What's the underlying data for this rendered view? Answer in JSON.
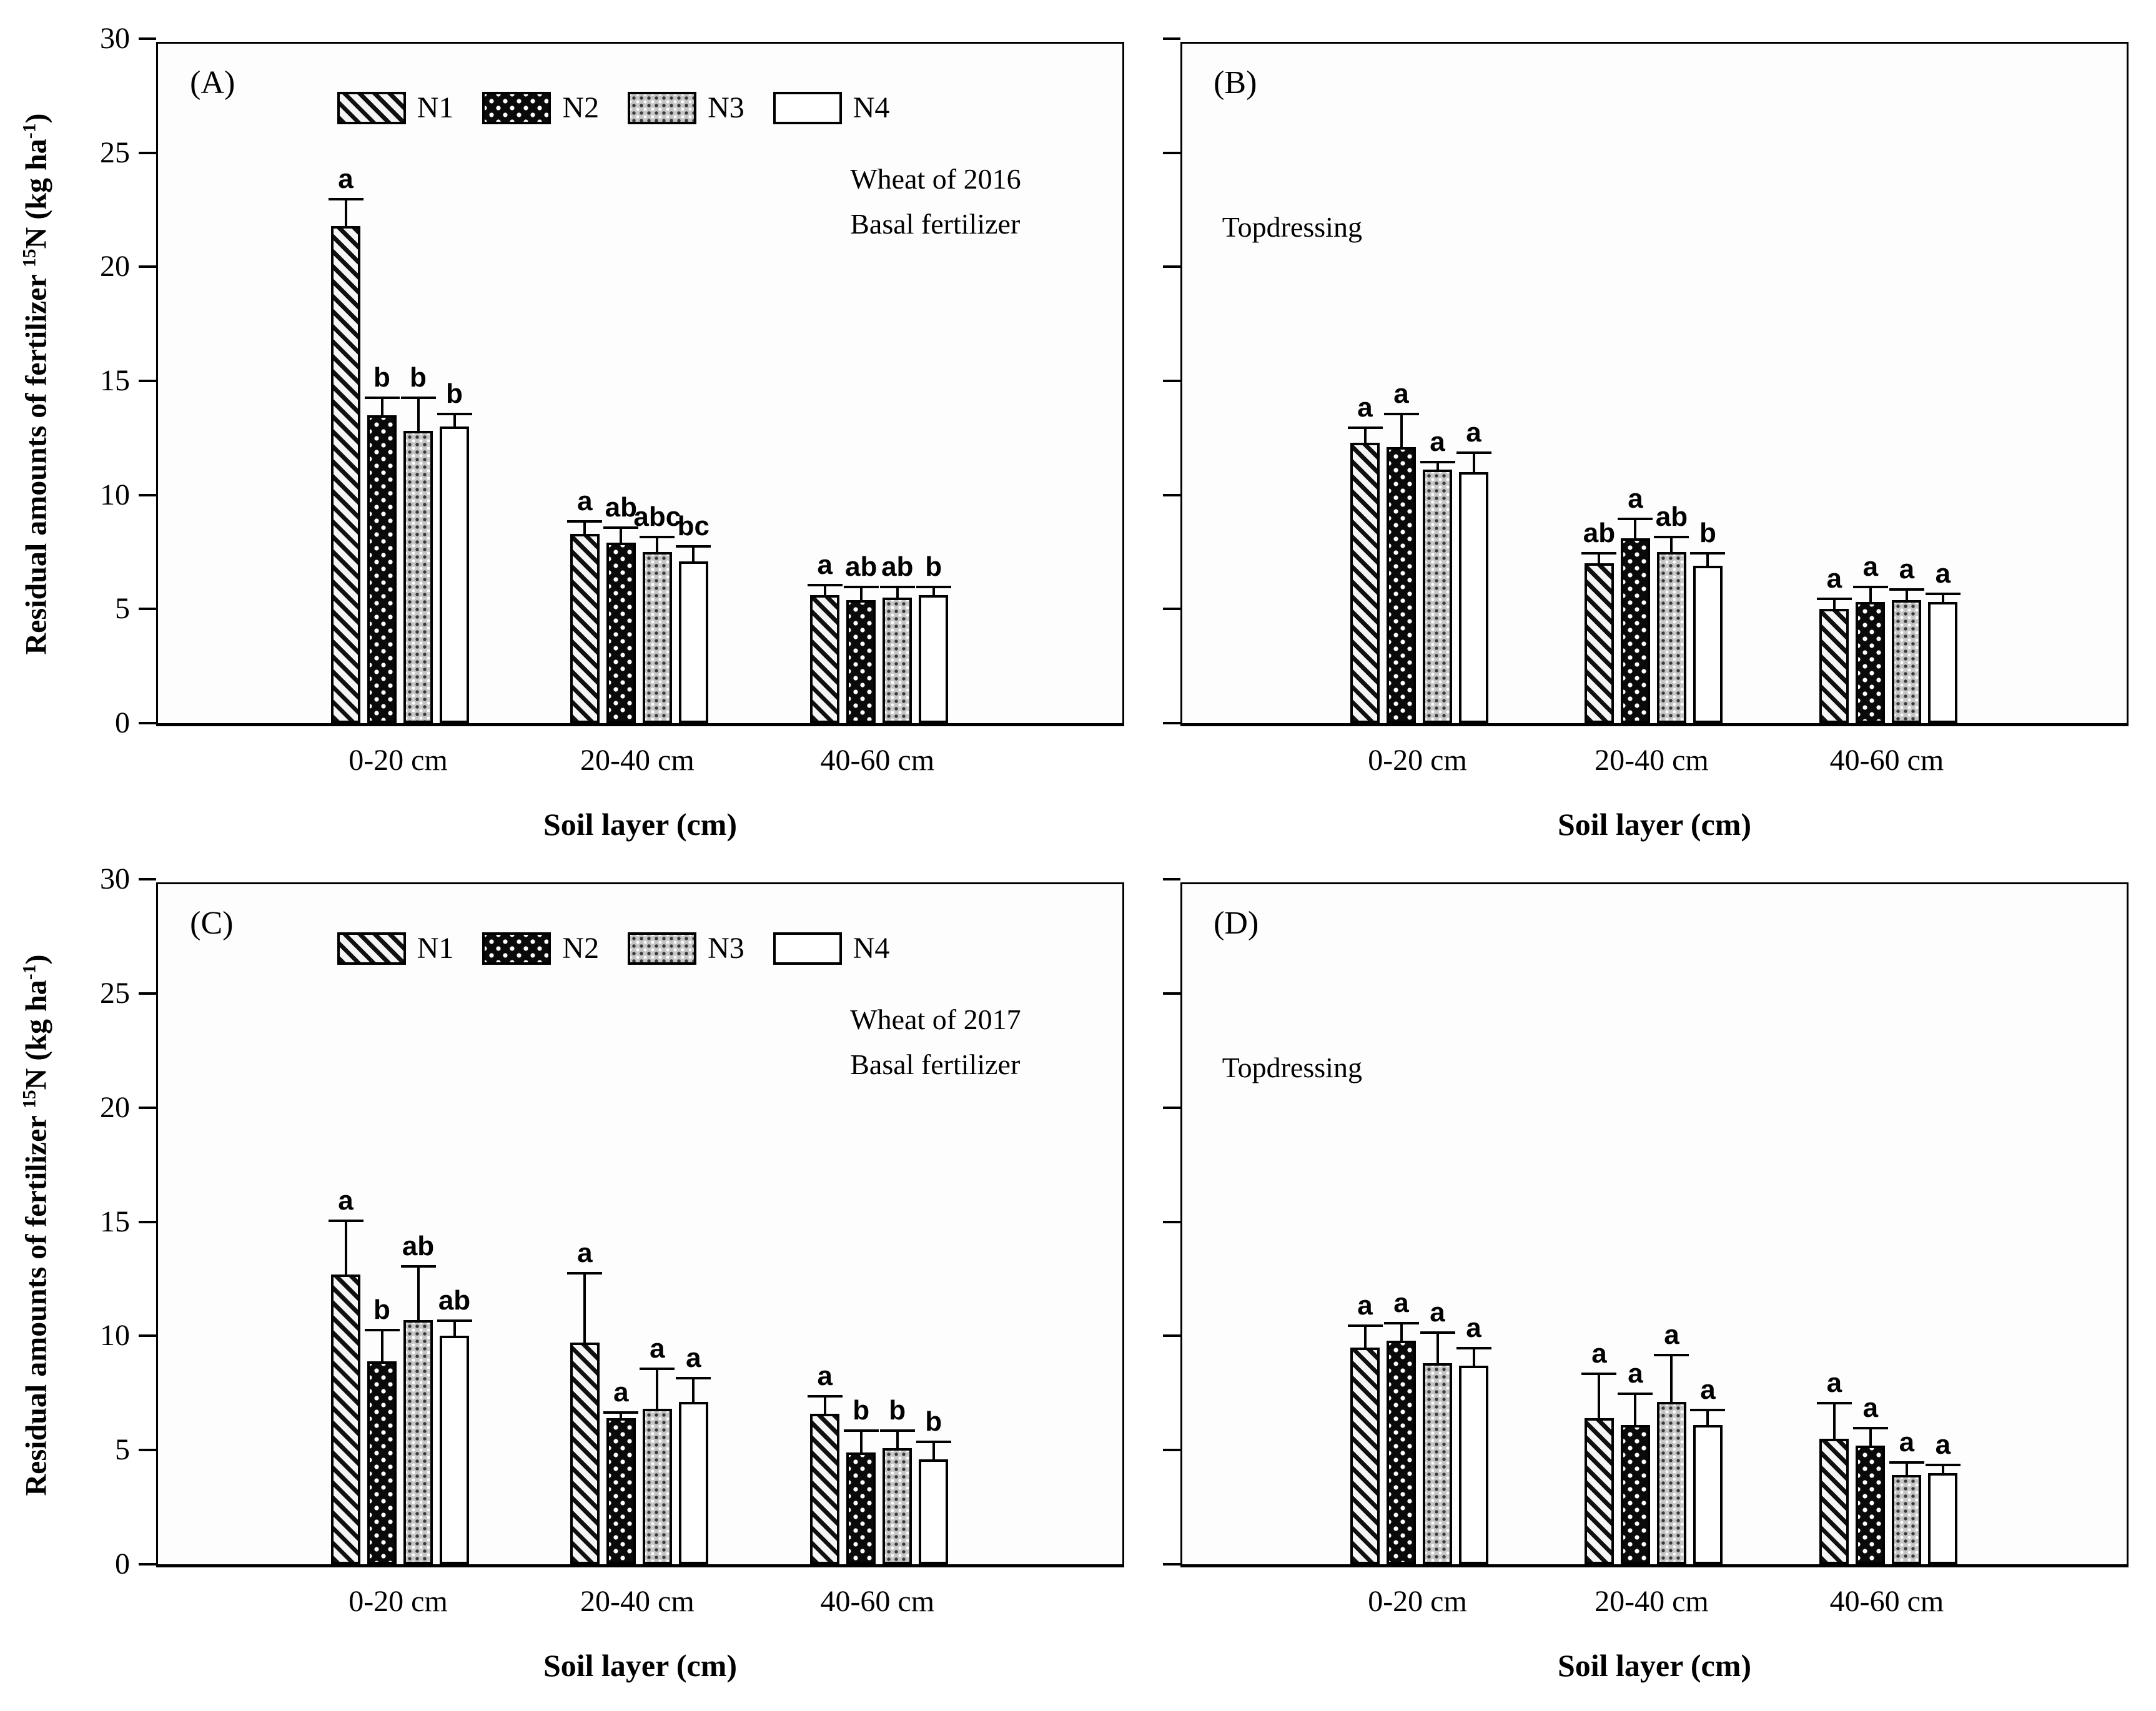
{
  "figure": {
    "x_axis_title": "Soil layer (cm)",
    "y_axis_title_segments": [
      "Residual amounts of fertilizer ",
      {
        "sup": "15"
      },
      "N (kg ha",
      {
        "sup": "-1"
      },
      ")"
    ],
    "ink_color": "#000000",
    "background_color": "#ffffff"
  },
  "legend": {
    "items": [
      {
        "label": "N1",
        "pattern": "n1",
        "swatch": "diagonal-hatch"
      },
      {
        "label": "N2",
        "pattern": "n2",
        "swatch": "black-with-white-dots"
      },
      {
        "label": "N3",
        "pattern": "n3",
        "swatch": "gray-dot-grid"
      },
      {
        "label": "N4",
        "pattern": "n4",
        "swatch": "white-empty"
      }
    ]
  },
  "chart_data": [
    {
      "type": "bar",
      "panel": "A",
      "panel_label": "(A)",
      "annotation_lines": [
        "Wheat of 2016",
        "Basal fertilizer"
      ],
      "show_legend": true,
      "show_y_tick_labels": true,
      "categories": [
        "0-20 cm",
        "20-40 cm",
        "40-60 cm"
      ],
      "xlabel": "Soil layer (cm)",
      "ylabel": "Residual amounts of fertilizer 15N (kg ha-1)",
      "ylim": [
        0,
        30
      ],
      "yticks": [
        0,
        5,
        10,
        15,
        20,
        25,
        30
      ],
      "series": [
        {
          "name": "N1",
          "pattern": "n1",
          "values": [
            21.8,
            8.3,
            5.6
          ],
          "errors": [
            1.1,
            0.5,
            0.4
          ],
          "letters": [
            "a",
            "a",
            "a"
          ]
        },
        {
          "name": "N2",
          "pattern": "n2",
          "values": [
            13.5,
            7.9,
            5.4
          ],
          "errors": [
            0.7,
            0.6,
            0.5
          ],
          "letters": [
            "b",
            "ab",
            "ab"
          ]
        },
        {
          "name": "N3",
          "pattern": "n3",
          "values": [
            12.8,
            7.5,
            5.5
          ],
          "errors": [
            1.4,
            0.6,
            0.4
          ],
          "letters": [
            "b",
            "abc",
            "ab"
          ]
        },
        {
          "name": "N4",
          "pattern": "n4",
          "values": [
            13.0,
            7.1,
            5.6
          ],
          "errors": [
            0.5,
            0.6,
            0.3
          ],
          "letters": [
            "b",
            "bc",
            "b"
          ]
        }
      ]
    },
    {
      "type": "bar",
      "panel": "B",
      "panel_label": "(B)",
      "annotation_lines": [
        "Topdressing"
      ],
      "show_legend": false,
      "show_y_tick_labels": false,
      "categories": [
        "0-20 cm",
        "20-40 cm",
        "40-60 cm"
      ],
      "xlabel": "Soil layer (cm)",
      "ylim": [
        0,
        30
      ],
      "yticks": [
        0,
        5,
        10,
        15,
        20,
        25,
        30
      ],
      "series": [
        {
          "name": "N1",
          "pattern": "n1",
          "values": [
            12.3,
            7.0,
            5.0
          ],
          "errors": [
            0.6,
            0.4,
            0.4
          ],
          "letters": [
            "a",
            "ab",
            "a"
          ]
        },
        {
          "name": "N2",
          "pattern": "n2",
          "values": [
            12.1,
            8.1,
            5.3
          ],
          "errors": [
            1.4,
            0.8,
            0.6
          ],
          "letters": [
            "a",
            "a",
            "a"
          ]
        },
        {
          "name": "N3",
          "pattern": "n3",
          "values": [
            11.1,
            7.5,
            5.4
          ],
          "errors": [
            0.3,
            0.6,
            0.4
          ],
          "letters": [
            "a",
            "ab",
            "a"
          ]
        },
        {
          "name": "N4",
          "pattern": "n4",
          "values": [
            11.0,
            6.9,
            5.3
          ],
          "errors": [
            0.8,
            0.5,
            0.3
          ],
          "letters": [
            "a",
            "b",
            "a"
          ]
        }
      ]
    },
    {
      "type": "bar",
      "panel": "C",
      "panel_label": "(C)",
      "annotation_lines": [
        "Wheat of 2017",
        "Basal fertilizer"
      ],
      "show_legend": true,
      "show_y_tick_labels": true,
      "categories": [
        "0-20 cm",
        "20-40 cm",
        "40-60 cm"
      ],
      "xlabel": "Soil layer (cm)",
      "ylabel": "Residual amounts of fertilizer 15N (kg ha-1)",
      "ylim": [
        0,
        30
      ],
      "yticks": [
        0,
        5,
        10,
        15,
        20,
        25,
        30
      ],
      "series": [
        {
          "name": "N1",
          "pattern": "n1",
          "values": [
            12.7,
            9.7,
            6.6
          ],
          "errors": [
            2.3,
            3.0,
            0.7
          ],
          "letters": [
            "a",
            "a",
            "a"
          ]
        },
        {
          "name": "N2",
          "pattern": "n2",
          "values": [
            8.9,
            6.4,
            4.9
          ],
          "errors": [
            1.3,
            0.2,
            0.9
          ],
          "letters": [
            "b",
            "a",
            "b"
          ]
        },
        {
          "name": "N3",
          "pattern": "n3",
          "values": [
            10.7,
            6.8,
            5.1
          ],
          "errors": [
            2.3,
            1.7,
            0.7
          ],
          "letters": [
            "ab",
            "a",
            "b"
          ]
        },
        {
          "name": "N4",
          "pattern": "n4",
          "values": [
            10.0,
            7.1,
            4.6
          ],
          "errors": [
            0.6,
            1.0,
            0.7
          ],
          "letters": [
            "ab",
            "a",
            "b"
          ]
        }
      ]
    },
    {
      "type": "bar",
      "panel": "D",
      "panel_label": "(D)",
      "annotation_lines": [
        "Topdressing"
      ],
      "show_legend": false,
      "show_y_tick_labels": false,
      "categories": [
        "0-20 cm",
        "20-40 cm",
        "40-60 cm"
      ],
      "xlabel": "Soil layer (cm)",
      "ylim": [
        0,
        30
      ],
      "yticks": [
        0,
        5,
        10,
        15,
        20,
        25,
        30
      ],
      "series": [
        {
          "name": "N1",
          "pattern": "n1",
          "values": [
            9.5,
            6.4,
            5.5
          ],
          "errors": [
            0.9,
            1.9,
            1.5
          ],
          "letters": [
            "a",
            "a",
            "a"
          ]
        },
        {
          "name": "N2",
          "pattern": "n2",
          "values": [
            9.8,
            6.1,
            5.2
          ],
          "errors": [
            0.7,
            1.3,
            0.7
          ],
          "letters": [
            "a",
            "a",
            "a"
          ]
        },
        {
          "name": "N3",
          "pattern": "n3",
          "values": [
            8.8,
            7.1,
            3.9
          ],
          "errors": [
            1.3,
            2.0,
            0.5
          ],
          "letters": [
            "a",
            "a",
            "a"
          ]
        },
        {
          "name": "N4",
          "pattern": "n4",
          "values": [
            8.7,
            6.1,
            4.0
          ],
          "errors": [
            0.7,
            0.6,
            0.3
          ],
          "letters": [
            "a",
            "a",
            "a"
          ]
        }
      ]
    }
  ]
}
